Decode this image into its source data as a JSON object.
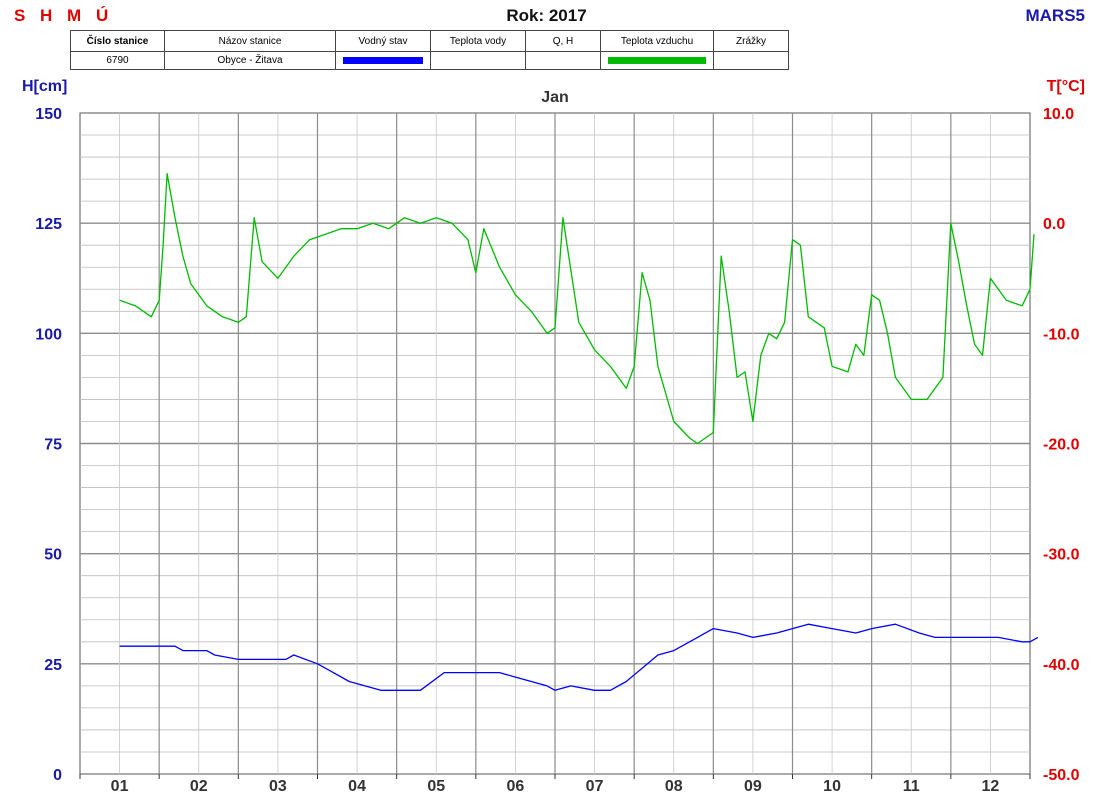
{
  "header": {
    "brand": "S H M Ú",
    "year_title": "Rok: 2017",
    "code": "MARS5"
  },
  "info_table": {
    "headers": [
      "Číslo stanice",
      "Názov stanice",
      "Vodný stav",
      "Teplota vody",
      "Q, H",
      "Teplota vzduchu",
      "Zrážky"
    ],
    "station_number": "6790",
    "station_name": "Obyce - Žitava",
    "colors": {
      "water_level": "#0000ff",
      "air_temp": "#00bb00"
    }
  },
  "chart_data": {
    "type": "line",
    "title": "Jan",
    "ylabel_left": "H[cm]",
    "ylabel_right": "T[°C]",
    "ylim_left": [
      0,
      150
    ],
    "ylim_right": [
      -50,
      10
    ],
    "yticks_left": [
      "150",
      "125",
      "100",
      "75",
      "50",
      "25",
      "0"
    ],
    "yticks_right": [
      "10.0",
      "0.0",
      "-10.0",
      "-20.0",
      "-30.0",
      "-40.0",
      "-50.0"
    ],
    "xticks": [
      "01",
      "02",
      "03",
      "04",
      "05",
      "06",
      "07",
      "08",
      "09",
      "10",
      "11",
      "12"
    ],
    "grid": true,
    "series": [
      {
        "name": "Vodný stav",
        "axis": "left",
        "color": "#0000ff",
        "x": [
          0.5,
          1.2,
          1.3,
          1.6,
          1.7,
          2.0,
          2.6,
          2.7,
          3.0,
          3.2,
          3.4,
          3.6,
          3.8,
          4.0,
          4.3,
          4.6,
          4.9,
          5.0,
          5.3,
          5.5,
          5.7,
          5.9,
          6.0,
          6.2,
          6.5,
          6.7,
          6.9,
          7.1,
          7.3,
          7.5,
          7.8,
          8.0,
          8.3,
          8.5,
          8.8,
          9.0,
          9.2,
          9.5,
          9.8,
          10.0,
          10.3,
          10.6,
          10.8,
          11.0,
          11.3,
          11.6,
          11.9,
          12.0,
          12.1
        ],
        "values": [
          29,
          29,
          28,
          28,
          27,
          26,
          26,
          27,
          25,
          23,
          21,
          20,
          19,
          19,
          19,
          23,
          23,
          23,
          23,
          22,
          21,
          20,
          19,
          20,
          19,
          19,
          21,
          24,
          27,
          28,
          31,
          33,
          32,
          31,
          32,
          33,
          34,
          33,
          32,
          33,
          34,
          32,
          31,
          31,
          31,
          31,
          30,
          30,
          31
        ]
      },
      {
        "name": "Teplota vzduchu",
        "axis": "right",
        "color": "#00bb00",
        "x": [
          0.5,
          0.7,
          0.8,
          0.9,
          1.0,
          1.05,
          1.1,
          1.2,
          1.3,
          1.4,
          1.6,
          1.8,
          2.0,
          2.1,
          2.2,
          2.3,
          2.5,
          2.7,
          2.9,
          3.1,
          3.3,
          3.5,
          3.7,
          3.9,
          4.1,
          4.3,
          4.5,
          4.7,
          4.9,
          5.0,
          5.1,
          5.3,
          5.5,
          5.7,
          5.9,
          6.0,
          6.1,
          6.3,
          6.5,
          6.7,
          6.9,
          7.0,
          7.1,
          7.2,
          7.3,
          7.5,
          7.7,
          7.8,
          8.0,
          8.1,
          8.2,
          8.3,
          8.4,
          8.5,
          8.6,
          8.7,
          8.8,
          8.9,
          9.0,
          9.1,
          9.2,
          9.3,
          9.4,
          9.5,
          9.7,
          9.8,
          9.9,
          10.0,
          10.1,
          10.2,
          10.3,
          10.5,
          10.7,
          10.9,
          11.0,
          11.1,
          11.2,
          11.3,
          11.4,
          11.5,
          11.7,
          11.9,
          12.0,
          12.05
        ],
        "values": [
          -7.0,
          -7.5,
          -8.0,
          -8.5,
          -7.0,
          -2.0,
          4.5,
          0.5,
          -3.0,
          -5.5,
          -7.5,
          -8.5,
          -9.0,
          -8.5,
          0.5,
          -3.5,
          -5.0,
          -3.0,
          -1.5,
          -1.0,
          -0.5,
          -0.5,
          0.0,
          -0.5,
          0.5,
          0.0,
          0.5,
          0.0,
          -1.5,
          -4.5,
          -0.5,
          -4.0,
          -6.5,
          -8.0,
          -10.0,
          -9.5,
          0.5,
          -9.0,
          -11.5,
          -13.0,
          -15.0,
          -13.0,
          -4.5,
          -7.0,
          -13.0,
          -18.0,
          -19.5,
          -20.0,
          -19.0,
          -3.0,
          -8.0,
          -14.0,
          -13.5,
          -18.0,
          -12.0,
          -10.0,
          -10.5,
          -9.0,
          -1.5,
          -2.0,
          -8.5,
          -9.0,
          -9.5,
          -13.0,
          -13.5,
          -11.0,
          -12.0,
          -6.5,
          -7.0,
          -10.0,
          -14.0,
          -16.0,
          -16.0,
          -14.0,
          0.0,
          -3.5,
          -7.5,
          -11.0,
          -12.0,
          -5.0,
          -7.0,
          -7.5,
          -6.0,
          -1.0
        ]
      }
    ]
  }
}
